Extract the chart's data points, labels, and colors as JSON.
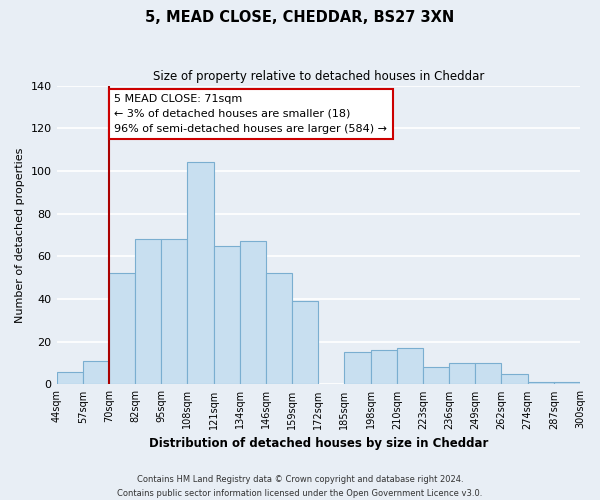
{
  "title": "5, MEAD CLOSE, CHEDDAR, BS27 3XN",
  "subtitle": "Size of property relative to detached houses in Cheddar",
  "xlabel": "Distribution of detached houses by size in Cheddar",
  "ylabel": "Number of detached properties",
  "bar_color": "#c8dff0",
  "bar_edge_color": "#7aaed0",
  "bins": [
    "44sqm",
    "57sqm",
    "70sqm",
    "82sqm",
    "95sqm",
    "108sqm",
    "121sqm",
    "134sqm",
    "146sqm",
    "159sqm",
    "172sqm",
    "185sqm",
    "198sqm",
    "210sqm",
    "223sqm",
    "236sqm",
    "249sqm",
    "262sqm",
    "274sqm",
    "287sqm",
    "300sqm"
  ],
  "values": [
    6,
    11,
    52,
    68,
    68,
    104,
    65,
    67,
    52,
    39,
    0,
    15,
    16,
    17,
    8,
    10,
    10,
    5,
    1,
    1,
    0
  ],
  "ylim": [
    0,
    140
  ],
  "yticks": [
    0,
    20,
    40,
    60,
    80,
    100,
    120,
    140
  ],
  "property_line_color": "#aa0000",
  "annotation_title": "5 MEAD CLOSE: 71sqm",
  "annotation_line1": "← 3% of detached houses are smaller (18)",
  "annotation_line2": "96% of semi-detached houses are larger (584) →",
  "annotation_box_color": "#ffffff",
  "annotation_box_edge": "#cc0000",
  "footer_line1": "Contains HM Land Registry data © Crown copyright and database right 2024.",
  "footer_line2": "Contains public sector information licensed under the Open Government Licence v3.0.",
  "background_color": "#e8eef5",
  "plot_background": "#e8eef5",
  "grid_color": "#ffffff"
}
